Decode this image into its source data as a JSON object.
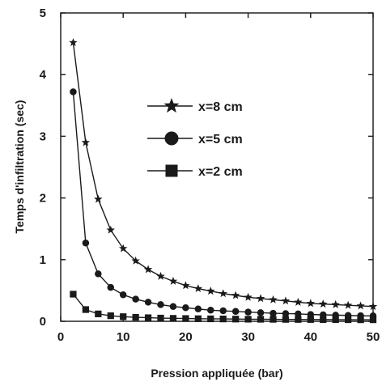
{
  "chart_data": {
    "type": "line",
    "title": "",
    "xlabel": "Pression appliquée (bar)",
    "ylabel": "Temps d'infiltration (sec)",
    "xlim": [
      0,
      50
    ],
    "ylim": [
      0,
      5
    ],
    "xticks": [
      0,
      10,
      20,
      30,
      40,
      50
    ],
    "yticks": [
      0,
      1,
      2,
      3,
      4,
      5
    ],
    "grid": false,
    "legend_position": "center",
    "x": [
      2,
      4,
      6,
      8,
      10,
      12,
      14,
      16,
      18,
      20,
      22,
      24,
      26,
      28,
      30,
      32,
      34,
      36,
      38,
      40,
      42,
      44,
      46,
      48,
      50
    ],
    "series": [
      {
        "name": "x=8 cm",
        "marker": "star",
        "values": [
          4.52,
          2.9,
          1.98,
          1.48,
          1.18,
          0.98,
          0.84,
          0.73,
          0.65,
          0.58,
          0.53,
          0.49,
          0.45,
          0.42,
          0.39,
          0.37,
          0.35,
          0.33,
          0.31,
          0.29,
          0.28,
          0.27,
          0.26,
          0.25,
          0.24
        ]
      },
      {
        "name": "x=5 cm",
        "marker": "circle",
        "values": [
          3.72,
          1.27,
          0.77,
          0.55,
          0.43,
          0.36,
          0.31,
          0.27,
          0.24,
          0.22,
          0.2,
          0.18,
          0.17,
          0.16,
          0.15,
          0.14,
          0.13,
          0.125,
          0.12,
          0.11,
          0.105,
          0.1,
          0.095,
          0.09,
          0.088
        ]
      },
      {
        "name": "x=2 cm",
        "marker": "square",
        "values": [
          0.44,
          0.19,
          0.12,
          0.09,
          0.075,
          0.065,
          0.058,
          0.052,
          0.048,
          0.045,
          0.042,
          0.04,
          0.038,
          0.036,
          0.034,
          0.033,
          0.032,
          0.031,
          0.03,
          0.029,
          0.028,
          0.027,
          0.026,
          0.025,
          0.025
        ]
      }
    ]
  }
}
